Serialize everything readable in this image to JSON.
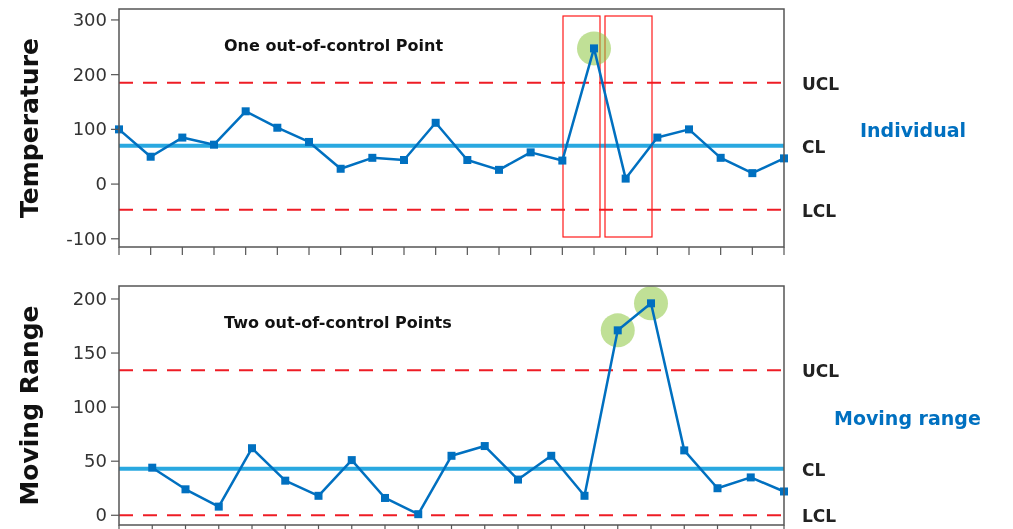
{
  "chart_data": [
    {
      "type": "line",
      "ylabel": "Temperature",
      "categories": [
        null,
        null,
        null,
        null,
        null,
        null,
        null,
        null,
        null,
        null,
        null,
        null,
        null,
        null,
        null,
        null,
        null,
        null,
        null,
        null,
        null,
        null
      ],
      "series": [
        {
          "color": "#0070c0",
          "values": [
            100,
            50,
            85,
            72,
            133,
            103,
            77,
            28,
            48,
            44,
            112,
            44,
            26,
            58,
            43,
            248,
            10,
            85,
            100,
            48,
            20,
            47
          ]
        }
      ],
      "ylim": [
        -115,
        320
      ],
      "yticks": [
        -100,
        0,
        100,
        200,
        300
      ],
      "marker": "square",
      "line_style": "solid",
      "ref_lines": [
        {
          "axis": "y",
          "value": 185,
          "label": "UCL",
          "color": "#ee1c25",
          "line_style": "dashed"
        },
        {
          "axis": "y",
          "value": 70,
          "label": "CL",
          "color": "#29a8e0",
          "line_style": "solid"
        },
        {
          "axis": "y",
          "value": -47,
          "label": "LCL",
          "color": "#ee1c25",
          "line_style": "dashed"
        }
      ],
      "annotations": [
        "One out-of-control Point",
        "Individual"
      ]
    },
    {
      "type": "line",
      "ylabel": "Moving Range",
      "categories": [
        null,
        null,
        null,
        null,
        null,
        null,
        null,
        null,
        null,
        null,
        null,
        null,
        null,
        null,
        null,
        null,
        null,
        null,
        null,
        null,
        null
      ],
      "series": [
        {
          "color": "#0070c0",
          "values": [
            null,
            44,
            24,
            8,
            62,
            32,
            18,
            51,
            16,
            1,
            55,
            64,
            33,
            55,
            18,
            171,
            196,
            60,
            25,
            35,
            22
          ]
        }
      ],
      "ylim": [
        -9,
        212
      ],
      "yticks": [
        0,
        50,
        100,
        150,
        200
      ],
      "marker": "square",
      "line_style": "solid",
      "ref_lines": [
        {
          "axis": "y",
          "value": 134,
          "label": "UCL",
          "color": "#ee1c25",
          "line_style": "dashed"
        },
        {
          "axis": "y",
          "value": 43,
          "label": "CL",
          "color": "#29a8e0",
          "line_style": "solid"
        },
        {
          "axis": "y",
          "value": 0,
          "label": "LCL",
          "color": "#ee1c25",
          "line_style": "dashed"
        }
      ],
      "annotations": [
        "Two out-of-control Points",
        "Moving range"
      ]
    }
  ]
}
